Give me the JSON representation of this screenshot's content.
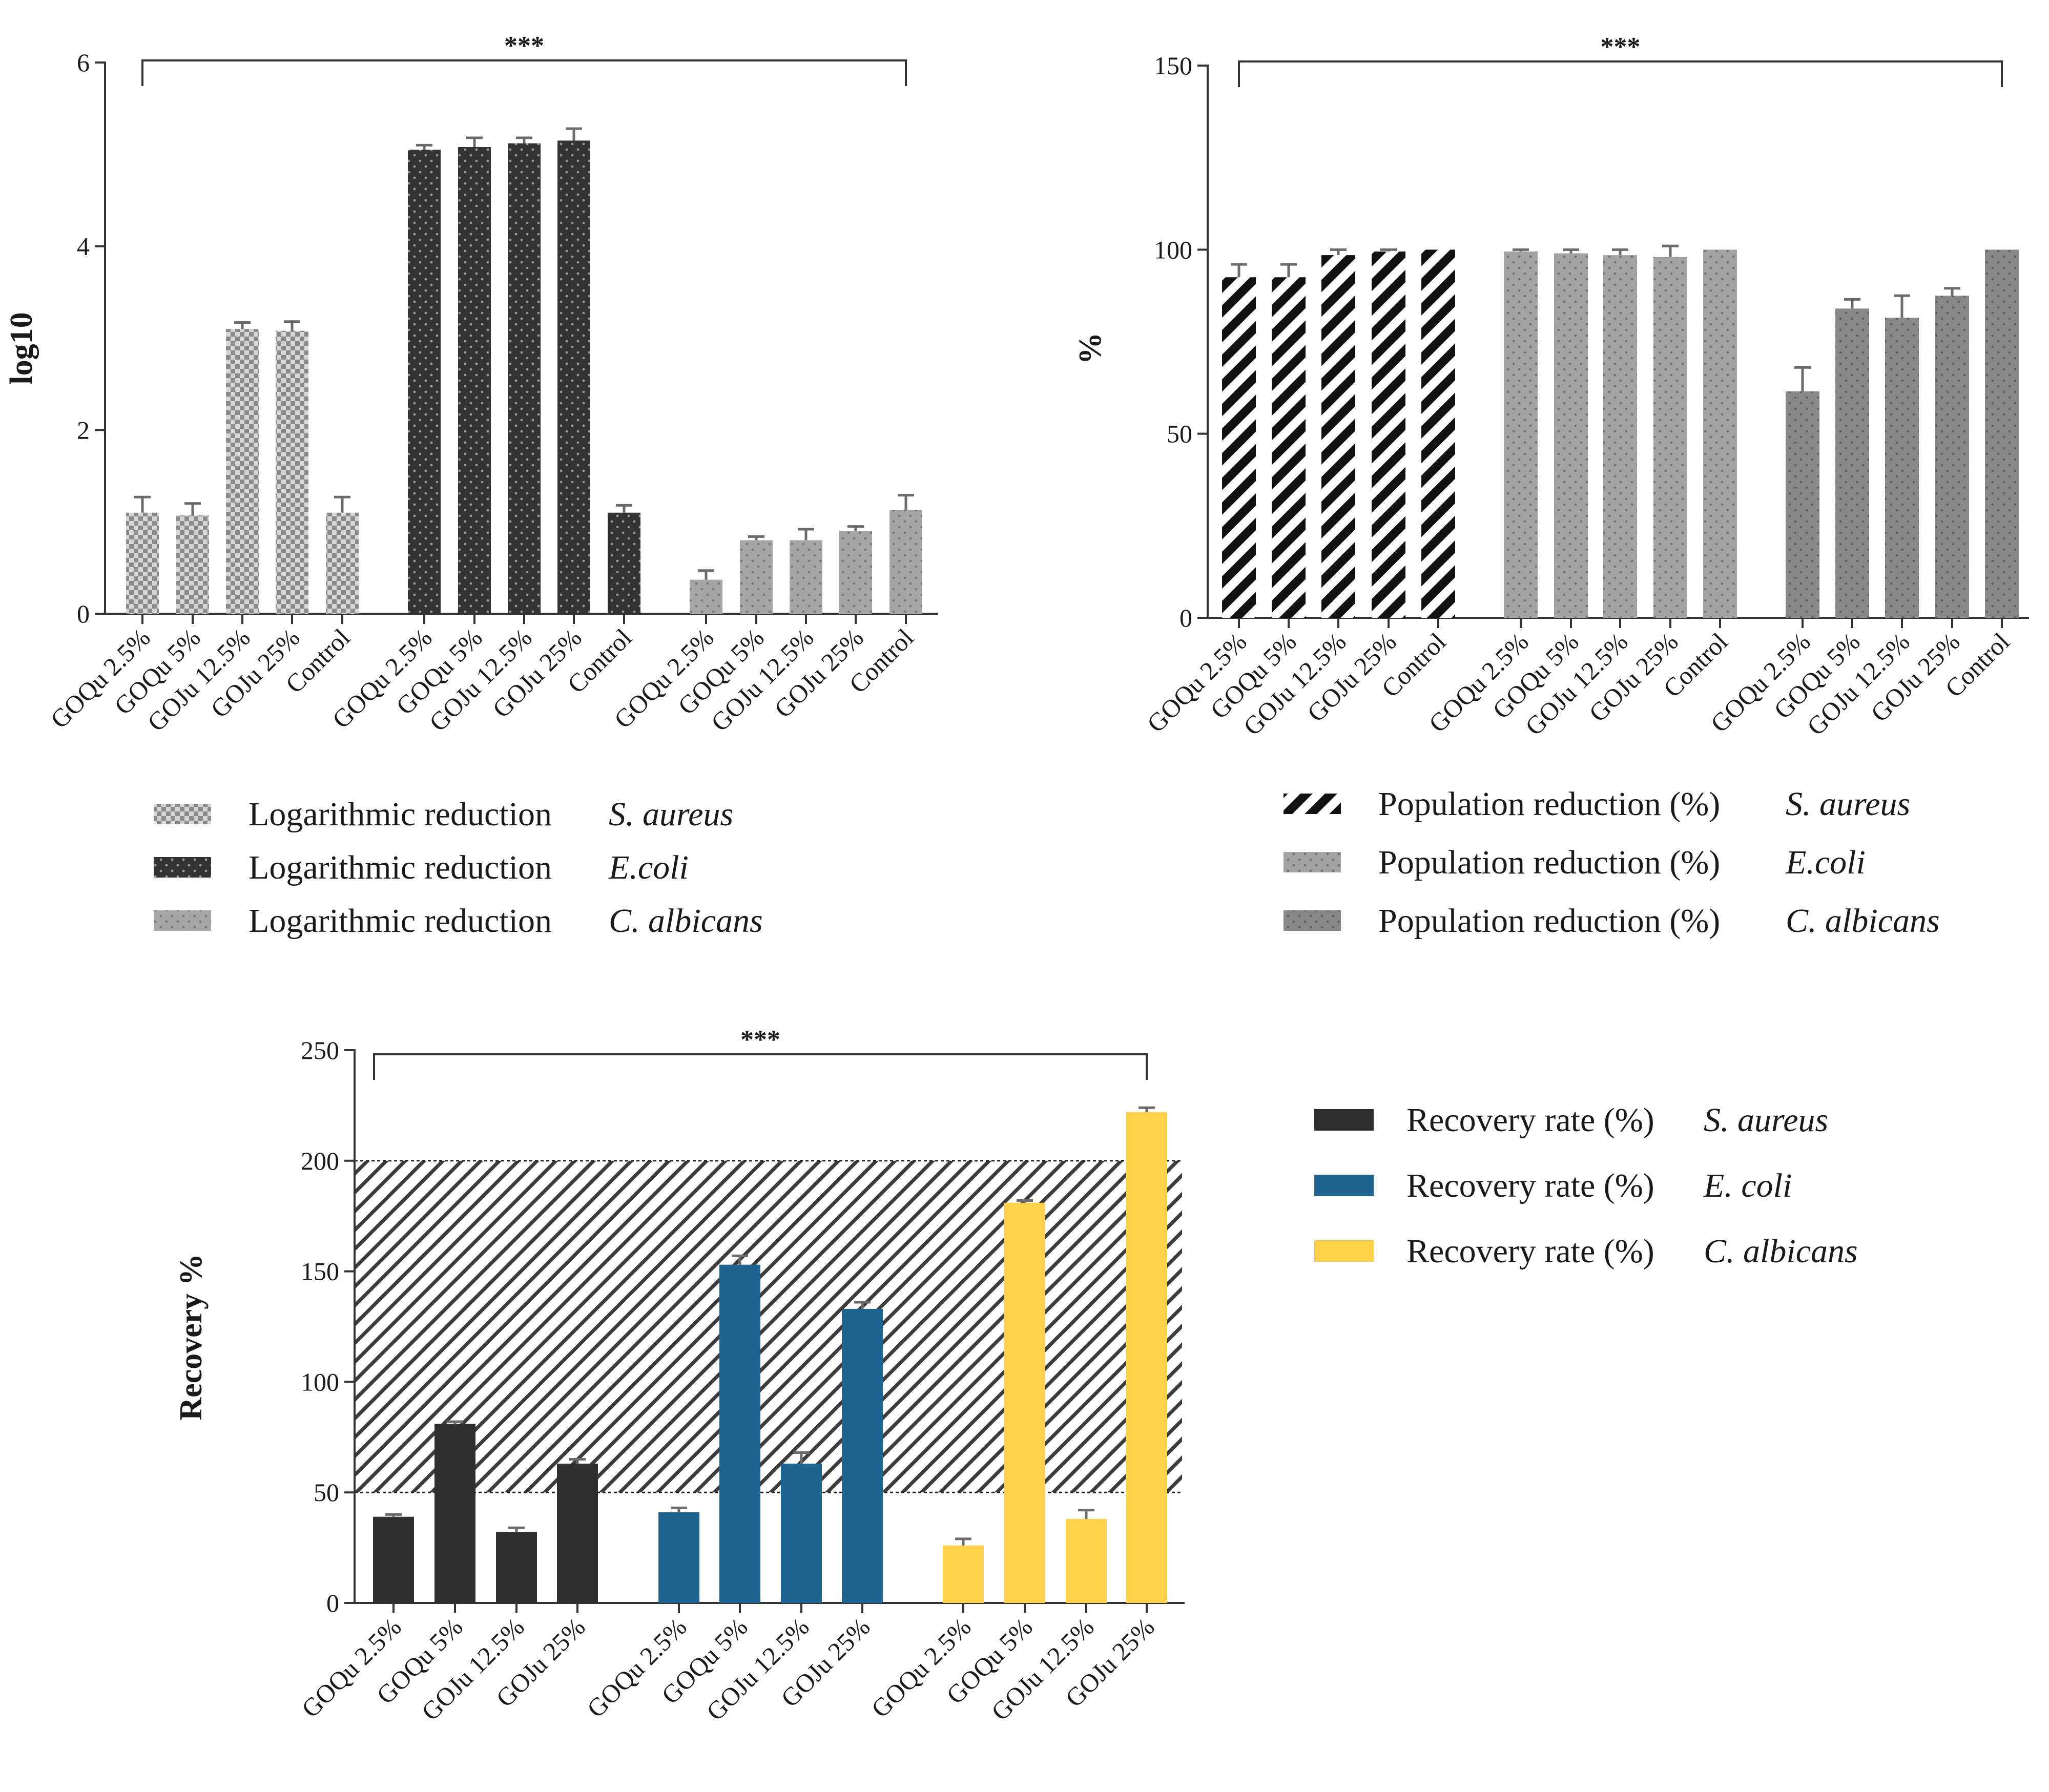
{
  "colors": {
    "axis": "#333333",
    "sa_log": "#cfcfcf",
    "ec_log": "#333333",
    "ca_log": "#a6a6a6",
    "sa_pct": "#111111",
    "ec_pct": "#a3a3a3",
    "ca_pct": "#888888",
    "rec_sa": "#2f2f2f",
    "rec_ec": "#1f6391",
    "rec_ca": "#ffd04a",
    "band": "#1a1a1a"
  },
  "chart_data": [
    {
      "type": "bar",
      "title": "",
      "xlabel": "",
      "ylabel": "log10",
      "ylim": [
        0,
        6
      ],
      "yticks": [
        0,
        2,
        4,
        6
      ],
      "categories": [
        "GOQu 2.5%",
        "GOQu 5%",
        "GOJu 12.5%",
        "GOJu 25%",
        "Control"
      ],
      "significance": "***",
      "series": [
        {
          "name": "Logarithmic reduction",
          "organism": "S. aureus",
          "values": [
            1.1,
            1.07,
            3.1,
            3.08,
            1.1
          ],
          "errors": [
            0.17,
            0.13,
            0.07,
            0.1,
            0.17
          ]
        },
        {
          "name": "Logarithmic reduction",
          "organism": "E.coli",
          "values": [
            5.05,
            5.08,
            5.12,
            5.15,
            1.1
          ],
          "errors": [
            0.05,
            0.1,
            0.06,
            0.13,
            0.08
          ]
        },
        {
          "name": "Logarithmic reduction",
          "organism": "C. albicans",
          "values": [
            0.37,
            0.8,
            0.8,
            0.9,
            1.13
          ],
          "errors": [
            0.1,
            0.04,
            0.12,
            0.05,
            0.16
          ]
        }
      ]
    },
    {
      "type": "bar",
      "title": "",
      "xlabel": "",
      "ylabel": "%",
      "ylim": [
        0,
        150
      ],
      "yticks": [
        0,
        50,
        100,
        150
      ],
      "categories": [
        "GOQu 2.5%",
        "GOQu 5%",
        "GOJu 12.5%",
        "GOJu 25%",
        "Control"
      ],
      "significance": "***",
      "series": [
        {
          "name": "Population reduction (%)",
          "organism": "S. aureus",
          "values": [
            92.5,
            92.5,
            98.5,
            99.5,
            100
          ],
          "errors": [
            3.5,
            3.5,
            1.5,
            0.5,
            0
          ]
        },
        {
          "name": "Population reduction (%)",
          "organism": "E.coli",
          "values": [
            99.5,
            99,
            98.5,
            98,
            100
          ],
          "errors": [
            0.5,
            1,
            1.5,
            3,
            0
          ]
        },
        {
          "name": "Population reduction (%)",
          "organism": "C. albicans",
          "values": [
            61.5,
            84,
            81.5,
            87.5,
            100
          ],
          "errors": [
            6.5,
            2.5,
            6,
            2,
            0
          ]
        }
      ]
    },
    {
      "type": "bar",
      "title": "",
      "xlabel": "",
      "ylabel": "Recovery %",
      "ylim": [
        0,
        250
      ],
      "yticks": [
        0,
        50,
        100,
        150,
        200,
        250
      ],
      "categories": [
        "GOQu 2.5%",
        "GOQu 5%",
        "GOJu 12.5%",
        "GOJu 25%"
      ],
      "significance": "***",
      "acceptable_band": [
        50,
        200
      ],
      "series": [
        {
          "name": "Recovery rate (%)",
          "organism": "S. aureus",
          "values": [
            39,
            81,
            32,
            63
          ],
          "errors": [
            1,
            1,
            2,
            2
          ]
        },
        {
          "name": "Recovery rate (%)",
          "organism": "E. coli",
          "values": [
            41,
            153,
            63,
            133
          ],
          "errors": [
            2,
            4,
            5,
            3
          ]
        },
        {
          "name": "Recovery rate (%)",
          "organism": "C. albicans",
          "values": [
            26,
            181,
            38,
            222
          ],
          "errors": [
            3,
            1,
            4,
            2
          ]
        }
      ]
    }
  ]
}
